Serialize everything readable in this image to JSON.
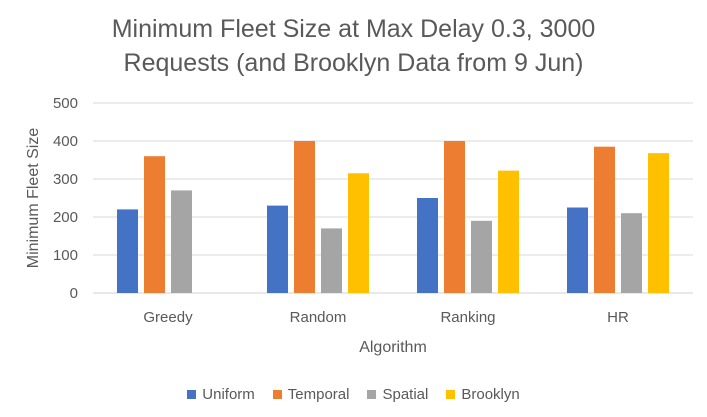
{
  "chart_data": {
    "type": "bar",
    "title_lines": [
      "Minimum Fleet Size at Max Delay 0.3, 3000",
      "Requests (and Brooklyn Data from 9 Jun)"
    ],
    "xlabel": "Algorithm",
    "ylabel": "Minimum Fleet Size",
    "ylim": [
      0,
      500
    ],
    "yticks": [
      0,
      100,
      200,
      300,
      400,
      500
    ],
    "grid": true,
    "legend_position": "bottom",
    "categories": [
      "Greedy",
      "Random",
      "Ranking",
      "HR"
    ],
    "series": [
      {
        "name": "Uniform",
        "color": "#4472C4",
        "values": [
          220,
          230,
          250,
          225
        ]
      },
      {
        "name": "Temporal",
        "color": "#ED7D31",
        "values": [
          360,
          400,
          400,
          385
        ]
      },
      {
        "name": "Spatial",
        "color": "#A5A5A5",
        "values": [
          270,
          170,
          190,
          210
        ]
      },
      {
        "name": "Brooklyn",
        "color": "#FFC000",
        "values": [
          null,
          315,
          322,
          368
        ]
      }
    ]
  }
}
